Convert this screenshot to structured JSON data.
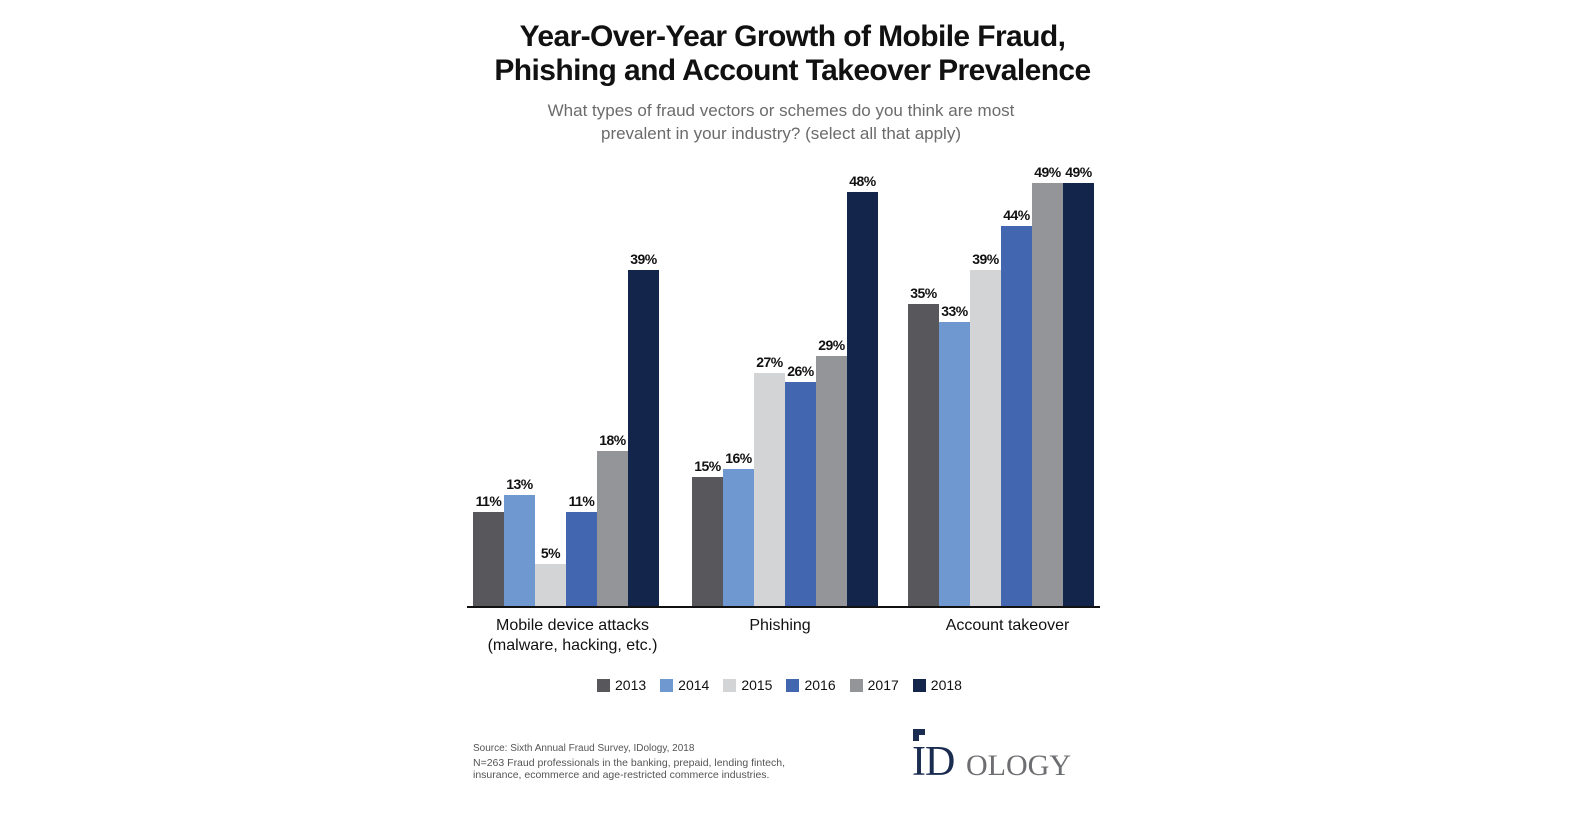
{
  "header": {
    "title_line1": "Year-Over-Year Growth of Mobile Fraud,",
    "title_line2": "Phishing and Account Takeover Prevalence",
    "subtitle_line1": "What types of fraud vectors or schemes do you think are most",
    "subtitle_line2": "prevalent in your industry? (select all that apply)"
  },
  "legend": {
    "items": [
      {
        "label": "2013",
        "color": "#58585c"
      },
      {
        "label": "2014",
        "color": "#6f98d0"
      },
      {
        "label": "2015",
        "color": "#d3d4d6"
      },
      {
        "label": "2016",
        "color": "#4266b0"
      },
      {
        "label": "2017",
        "color": "#939598"
      },
      {
        "label": "2018",
        "color": "#13254a"
      }
    ]
  },
  "categories": {
    "mobile_line1": "Mobile device attacks",
    "mobile_line2": "(malware, hacking, etc.)",
    "phishing": "Phishing",
    "account_takeover": "Account takeover"
  },
  "footer": {
    "source": "Source:  Sixth Annual Fraud Survey, IDology, 2018",
    "note_line1": "N=263 Fraud professionals in the banking, prepaid, lending fintech,",
    "note_line2": "insurance, ecommerce and age-restricted commerce industries.",
    "logo_id": "ID",
    "logo_ology": "OLOGY"
  },
  "chart_data": {
    "type": "bar",
    "title": "Year-Over-Year Growth of Mobile Fraud, Phishing and Account Takeover Prevalence",
    "subtitle": "What types of fraud vectors or schemes do you think are most prevalent in your industry? (select all that apply)",
    "xlabel": "",
    "ylabel": "",
    "ylim": [
      0,
      50
    ],
    "grid": false,
    "legend_position": "bottom",
    "categories": [
      "Mobile device attacks (malware, hacking, etc.)",
      "Phishing",
      "Account takeover"
    ],
    "series": [
      {
        "name": "2013",
        "color": "#58585c",
        "values": [
          11,
          15,
          35
        ]
      },
      {
        "name": "2014",
        "color": "#6f98d0",
        "values": [
          13,
          16,
          33
        ]
      },
      {
        "name": "2015",
        "color": "#d3d4d6",
        "values": [
          5,
          27,
          39
        ]
      },
      {
        "name": "2016",
        "color": "#4266b0",
        "values": [
          11,
          26,
          44
        ]
      },
      {
        "name": "2017",
        "color": "#939598",
        "values": [
          18,
          29,
          49
        ]
      },
      {
        "name": "2018",
        "color": "#13254a",
        "values": [
          39,
          48,
          49
        ]
      }
    ],
    "value_labels": [
      [
        "11%",
        "13%",
        "5%",
        "11%",
        "18%",
        "39%"
      ],
      [
        "15%",
        "16%",
        "27%",
        "26%",
        "29%",
        "48%"
      ],
      [
        "35%",
        "33%",
        "39%",
        "44%",
        "49%",
        "49%"
      ]
    ],
    "source": "Sixth Annual Fraud Survey, IDology, 2018"
  }
}
